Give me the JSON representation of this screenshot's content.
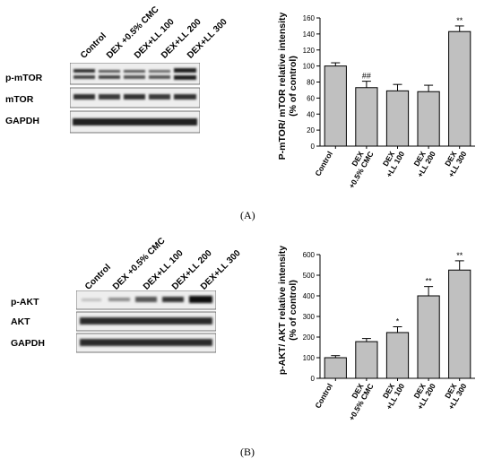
{
  "panels": [
    {
      "panel_label": "(A)",
      "blot": {
        "lane_labels": [
          "Control",
          "DEX +0.5% CMC",
          "DEX+LL 100",
          "DEX+LL 200",
          "DEX+LL 300"
        ],
        "rows": [
          "p-mTOR",
          "mTOR",
          "GAPDH"
        ]
      }
    },
    {
      "panel_label": "(B)",
      "blot": {
        "lane_labels": [
          "Control",
          "DEX +0.5% CMC",
          "DEX+LL 100",
          "DEX+LL 200",
          "DEX+LL 300"
        ],
        "rows": [
          "p-AKT",
          "AKT",
          "GAPDH"
        ]
      }
    }
  ],
  "chart_data": [
    {
      "type": "bar",
      "categories": [
        [
          "Control"
        ],
        [
          "DEX",
          "+0.5% CMC"
        ],
        [
          "DEX",
          "+LL 100"
        ],
        [
          "DEX",
          "+LL 200"
        ],
        [
          "DEX",
          "+LL 300"
        ]
      ],
      "values": [
        100,
        73,
        69,
        68,
        143
      ],
      "errors": [
        4,
        8,
        8,
        8,
        7
      ],
      "annotations": [
        "",
        "##",
        "",
        "",
        "**"
      ],
      "ylabel": [
        "P-mTOR/ mTOR relative intensity",
        "(% of control)"
      ],
      "ylim": [
        0,
        160
      ],
      "yticks": [
        0,
        20,
        40,
        60,
        80,
        100,
        120,
        140,
        160
      ],
      "bar_color": "#c0c0c0",
      "grid": false
    },
    {
      "type": "bar",
      "categories": [
        [
          "Control"
        ],
        [
          "DEX",
          "+0.5% CMC"
        ],
        [
          "DEX",
          "+LL 100"
        ],
        [
          "DEX",
          "+LL 200"
        ],
        [
          "DEX",
          "+LL 300"
        ]
      ],
      "values": [
        100,
        178,
        222,
        400,
        525
      ],
      "errors": [
        10,
        15,
        28,
        45,
        45
      ],
      "annotations": [
        "",
        "",
        "*",
        "**",
        "**"
      ],
      "ylabel": [
        "p-AKT/ AKT relative intensity",
        "(% of control)"
      ],
      "ylim": [
        0,
        600
      ],
      "yticks": [
        0,
        100,
        200,
        300,
        400,
        500,
        600
      ],
      "bar_color": "#c0c0c0",
      "grid": false
    }
  ]
}
